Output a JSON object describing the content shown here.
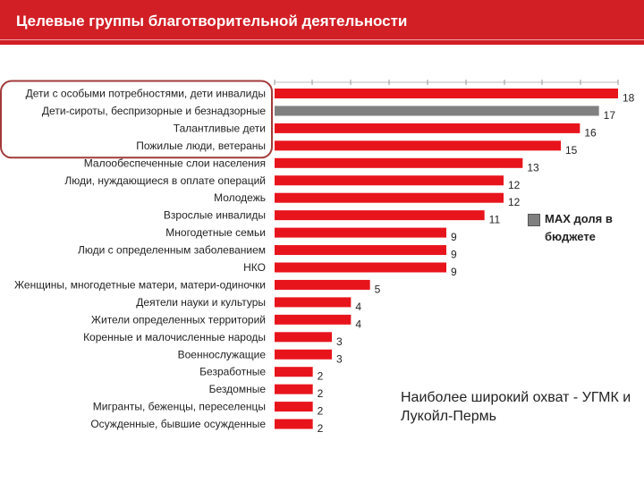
{
  "header": {
    "title": "Целевые группы благотворительной деятельности"
  },
  "colors": {
    "header_bg": "#d21f26",
    "bar": "#e8141c",
    "highlight_bar": "#808080",
    "circle": "#a33a3a"
  },
  "chart_data": {
    "type": "bar",
    "orientation": "horizontal",
    "categories": [
      "Дети с особыми потребностями, дети инвалиды",
      "Дети-сироты, беспризорные и безнадзорные",
      "Талантливые дети",
      "Пожилые люди, ветераны",
      "Малообеспеченные слои населения",
      "Люди, нуждающиеся в оплате операций",
      "Молодежь",
      "Взрослые инвалиды",
      "Многодетные семьи",
      "Люди с определенным заболеванием",
      "НКО",
      "Женщины, многодетные матери, матери-одиночки",
      "Деятели науки и культуры",
      "Жители определенных территорий",
      "Коренные и малочисленные народы",
      "Военнослужащие",
      "Безработные",
      "Бездомные",
      "Мигранты, беженцы, переселенцы",
      "Осужденные, бывшие осужденные"
    ],
    "values": [
      18,
      17,
      16,
      15,
      13,
      12,
      12,
      11,
      9,
      9,
      9,
      5,
      4,
      4,
      3,
      3,
      2,
      2,
      2,
      2
    ],
    "highlighted_index": 1,
    "circled_categories": 4,
    "xlim": [
      0,
      18
    ],
    "legend": "МАХ доля в бюджете"
  },
  "annotation": {
    "text": "Наиболее широкий охват - УГМК и Лукойл-Пермь"
  }
}
